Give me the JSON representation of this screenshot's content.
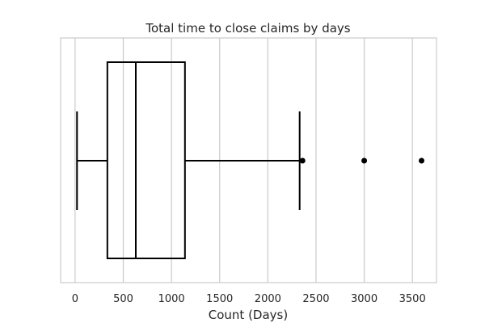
{
  "chart_data": {
    "type": "boxplot",
    "orientation": "horizontal",
    "title": "Total time to close claims by days",
    "xlabel": "Count (Days)",
    "ylabel": "",
    "xlim": [
      -150,
      3750
    ],
    "xticks": [
      0,
      500,
      1000,
      1500,
      2000,
      2500,
      3000,
      3500
    ],
    "xtick_labels": [
      "0",
      "500",
      "1000",
      "1500",
      "2000",
      "2500",
      "3000",
      "3500"
    ],
    "grid": "vertical",
    "box": {
      "whisker_low": 20,
      "q1": 335,
      "median": 630,
      "q3": 1140,
      "whisker_high": 2330
    },
    "outliers": [
      2360,
      3000,
      3595
    ],
    "colors": {
      "line": "#000000",
      "grid": "#cccccc",
      "text": "#262626"
    }
  }
}
